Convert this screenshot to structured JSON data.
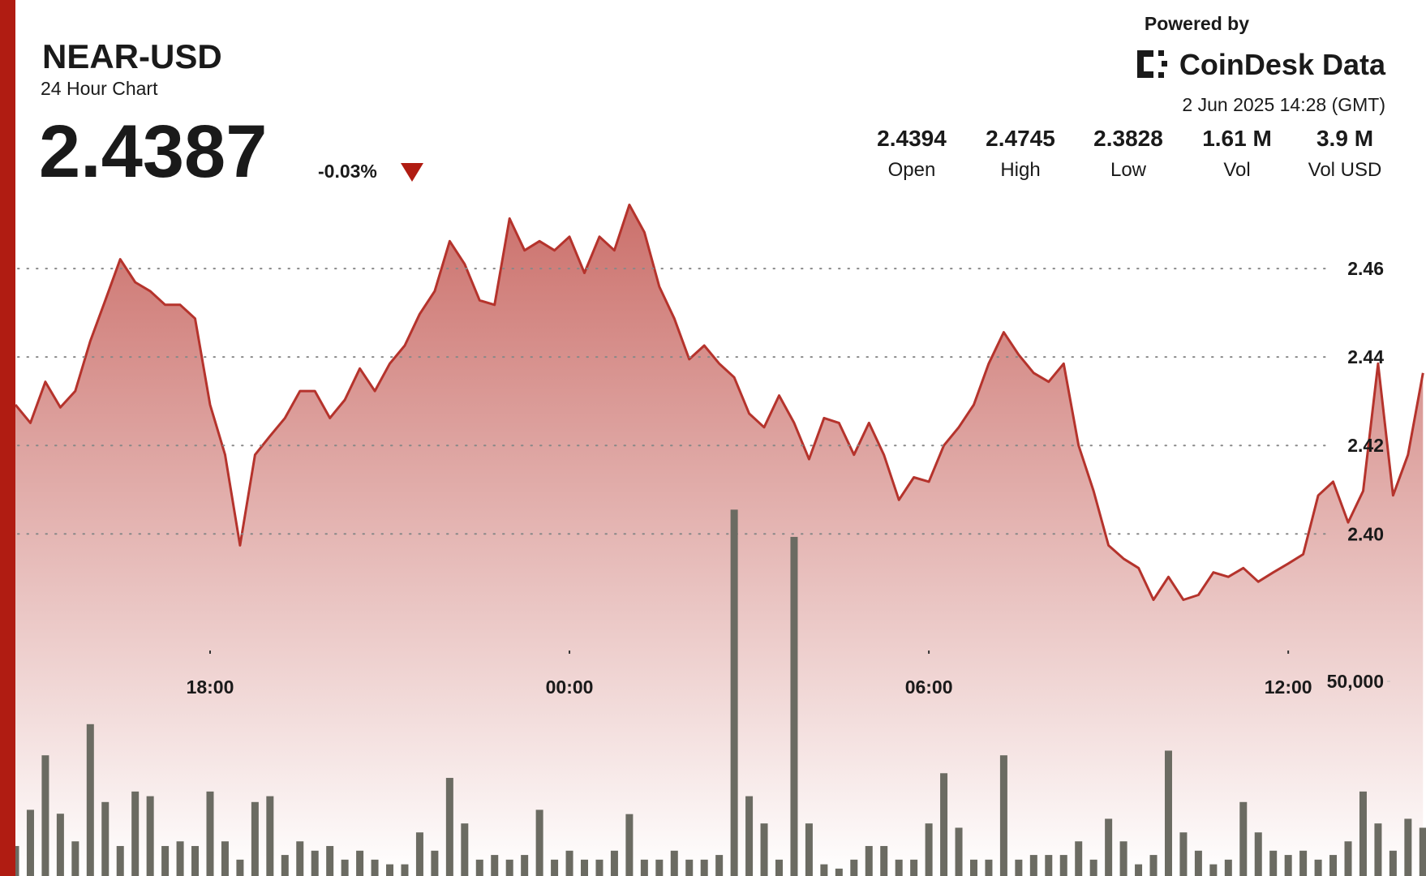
{
  "chart_data": {
    "type": "line",
    "title": "NEAR-USD",
    "subtitle": "24 Hour Chart",
    "x": [
      14.75,
      15,
      15.25,
      15.5,
      15.75,
      16,
      16.25,
      16.5,
      16.75,
      17,
      17.25,
      17.5,
      17.75,
      18,
      18.25,
      18.5,
      18.75,
      19,
      19.25,
      19.5,
      19.75,
      20,
      20.25,
      20.5,
      20.75,
      21,
      21.25,
      21.5,
      21.75,
      22,
      22.25,
      22.5,
      22.75,
      23,
      23.25,
      23.5,
      23.75,
      24,
      24.25,
      24.5,
      24.75,
      25,
      25.25,
      25.5,
      25.75,
      26,
      26.25,
      26.5,
      26.75,
      27,
      27.25,
      27.5,
      27.75,
      28,
      28.25,
      28.5,
      28.75,
      29,
      29.25,
      29.5,
      29.75,
      30,
      30.25,
      30.5,
      30.75,
      31,
      31.25,
      31.5,
      31.75,
      32,
      32.25,
      32.5,
      32.75,
      33,
      33.25,
      33.5,
      33.75,
      34,
      34.25,
      34.5,
      34.75,
      35,
      35.25,
      35.5,
      35.75,
      36,
      36.25,
      36.5,
      36.75,
      37,
      37.25,
      37.5,
      37.75,
      38,
      38.25
    ],
    "series": [
      {
        "name": "Price",
        "color": "#b5332c",
        "values": [
          2.4292,
          2.4251,
          2.4344,
          2.4286,
          2.4323,
          2.4436,
          2.4528,
          2.4621,
          2.4569,
          2.4549,
          2.4518,
          2.4518,
          2.4487,
          2.4292,
          2.4179,
          2.3974,
          2.4179,
          2.4221,
          2.4262,
          2.4323,
          2.4323,
          2.4262,
          2.4303,
          2.4374,
          2.4323,
          2.4385,
          2.4426,
          2.4497,
          2.4549,
          2.4662,
          2.461,
          2.4528,
          2.4518,
          2.4713,
          2.4641,
          2.4662,
          2.4641,
          2.4672,
          2.459,
          2.4672,
          2.4641,
          2.4744,
          2.4682,
          2.4559,
          2.4487,
          2.4395,
          2.4426,
          2.4385,
          2.4354,
          2.4272,
          2.4241,
          2.4313,
          2.4251,
          2.4169,
          2.4262,
          2.4251,
          2.4179,
          2.4251,
          2.4179,
          2.4077,
          2.4128,
          2.4118,
          2.42,
          2.4241,
          2.4292,
          2.4385,
          2.4456,
          2.4405,
          2.4364,
          2.4344,
          2.4385,
          2.42,
          2.4097,
          2.3974,
          2.3944,
          2.3923,
          2.3851,
          2.3903,
          2.3851,
          2.3862,
          2.3913,
          2.3903,
          2.3923,
          2.3892,
          2.3913,
          2.3933,
          2.3954,
          2.4087,
          2.4118,
          2.4026,
          2.4097,
          2.4385,
          2.4087,
          2.4179,
          2.4364
        ]
      },
      {
        "name": "Volume",
        "color": "#6b6b62",
        "axis": "y2",
        "values": [
          7700,
          17000,
          31000,
          16000,
          8900,
          39000,
          19000,
          7700,
          21700,
          20500,
          7700,
          8900,
          7700,
          21700,
          8900,
          4200,
          19000,
          20500,
          5400,
          8900,
          6500,
          7700,
          4200,
          6500,
          4200,
          3000,
          3000,
          11200,
          6500,
          25200,
          13500,
          4200,
          5400,
          4200,
          5400,
          17000,
          4200,
          6500,
          4200,
          4200,
          6500,
          15900,
          4200,
          4200,
          6500,
          4200,
          4200,
          5400,
          94100,
          20500,
          13500,
          4200,
          87100,
          13500,
          3000,
          1900,
          4200,
          7700,
          7700,
          4200,
          4200,
          13500,
          26400,
          12400,
          4200,
          4200,
          31000,
          4200,
          5400,
          5400,
          5400,
          8900,
          4200,
          14700,
          8900,
          3000,
          5400,
          32200,
          11200,
          6500,
          3000,
          4200,
          19000,
          11200,
          6500,
          5400,
          6500,
          4200,
          5400,
          8900,
          21700,
          13500,
          6500,
          14700,
          12400
        ]
      }
    ],
    "xlim": [
      14.75,
      38.3
    ],
    "xticks": [
      {
        "value": 18,
        "label": "18:00"
      },
      {
        "value": 24,
        "label": "00:00"
      },
      {
        "value": 30,
        "label": "06:00"
      },
      {
        "value": 36,
        "label": "12:00"
      }
    ],
    "ylim": [
      2.33,
      2.48
    ],
    "yticks": [
      {
        "value": 2.4,
        "label": "2.40"
      },
      2.42,
      2.44,
      2.46
    ],
    "y2lim": [
      0,
      225000
    ],
    "y2ticks": [
      {
        "value": 50000,
        "label": "50,000"
      }
    ],
    "grid": true
  },
  "header": {
    "price": 2.4387,
    "change": "-0.03%",
    "powered_by": "Powered by",
    "brand": "CoinDesk Data",
    "timestamp": "2 Jun 2025 14:28 (GMT)"
  },
  "stats": [
    {
      "value": 2.4394,
      "label": "Open"
    },
    {
      "value": 2.4745,
      "label": "High"
    },
    {
      "value": 2.3828,
      "label": "Low"
    },
    {
      "value": "1.61 M",
      "label": "Vol"
    },
    {
      "value": "3.9 M",
      "label": "Vol USD"
    }
  ]
}
